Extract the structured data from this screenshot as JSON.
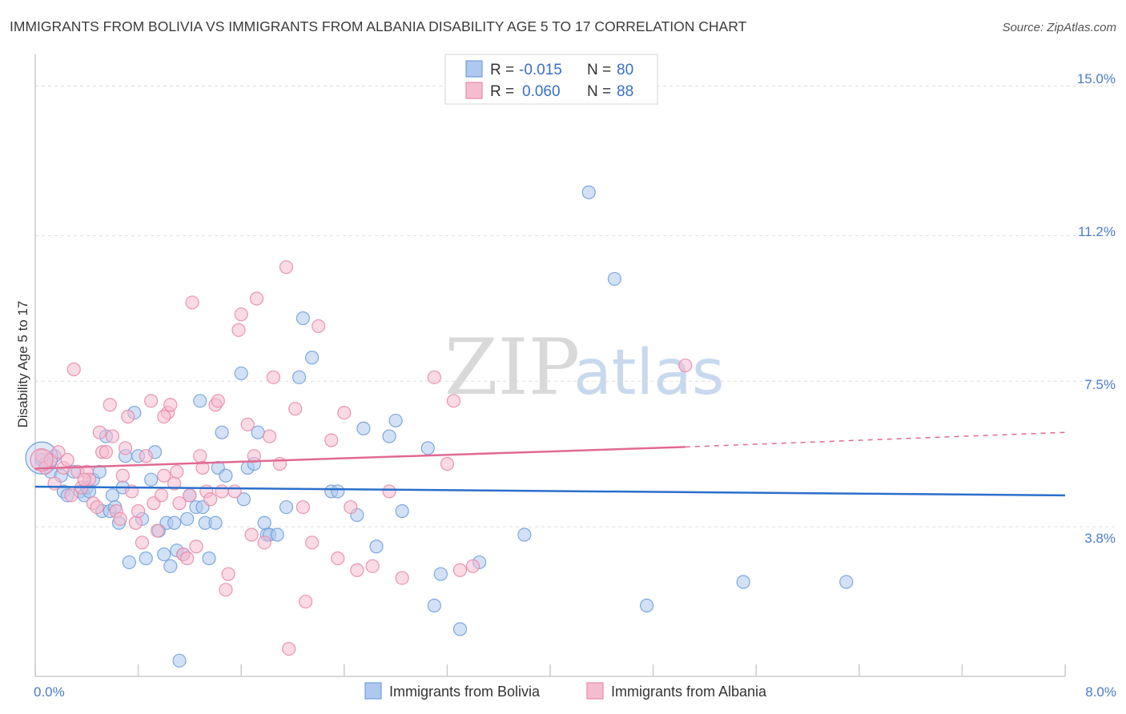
{
  "header": {
    "title": "IMMIGRANTS FROM BOLIVIA VS IMMIGRANTS FROM ALBANIA DISABILITY AGE 5 TO 17 CORRELATION CHART",
    "source": "Source: ZipAtlas.com"
  },
  "watermark": {
    "zip": "ZIP",
    "atlas": "atlas"
  },
  "legend": {
    "r_label": "R =",
    "n_label": "N =",
    "rows": [
      {
        "name": "Immigrants from Bolivia",
        "r": "-0.015",
        "n": "80",
        "color": "#6fa0dc"
      },
      {
        "name": "Immigrants from Albania",
        "r": "0.060",
        "n": "88",
        "color": "#e88aa8"
      }
    ]
  },
  "colors": {
    "bolivia_fill": "#aec8ef",
    "bolivia_stroke": "#6fa0dc",
    "bolivia_line": "#2a6fcb",
    "albania_fill": "#f5bcd0",
    "albania_stroke": "#e88aa8",
    "albania_line": "#e06a92",
    "grid": "#dddddd",
    "tick_label": "#4a7cc7"
  },
  "chart_data": {
    "type": "scatter",
    "title": "IMMIGRANTS FROM BOLIVIA VS IMMIGRANTS FROM ALBANIA DISABILITY AGE 5 TO 17 CORRELATION CHART",
    "xlabel": "",
    "ylabel": "Disability Age 5 to 17",
    "xlim": [
      0,
      8
    ],
    "ylim": [
      0,
      15.6
    ],
    "x_tick_labels": [
      "0.0%",
      "8.0%"
    ],
    "y_ticks": [
      3.8,
      7.5,
      11.2,
      15.0
    ],
    "y_tick_labels": [
      "3.8%",
      "7.5%",
      "11.2%",
      "15.0%"
    ],
    "grid": true,
    "legend_position": "top-center",
    "series": [
      {
        "name": "Immigrants from Bolivia",
        "r": -0.015,
        "n": 80,
        "trend": {
          "x": [
            0,
            8
          ],
          "y": [
            4.82,
            4.6
          ]
        },
        "points": [
          [
            0.05,
            5.5
          ],
          [
            0.08,
            5.4
          ],
          [
            0.12,
            5.2
          ],
          [
            0.15,
            5.6
          ],
          [
            0.2,
            5.1
          ],
          [
            0.22,
            4.7
          ],
          [
            0.25,
            4.6
          ],
          [
            0.3,
            5.2
          ],
          [
            0.35,
            4.7
          ],
          [
            0.38,
            4.6
          ],
          [
            0.4,
            4.8
          ],
          [
            0.42,
            4.7
          ],
          [
            0.45,
            5.0
          ],
          [
            0.5,
            5.2
          ],
          [
            0.52,
            4.2
          ],
          [
            0.55,
            6.1
          ],
          [
            0.58,
            4.2
          ],
          [
            0.6,
            4.6
          ],
          [
            0.62,
            4.3
          ],
          [
            0.65,
            3.9
          ],
          [
            0.68,
            4.8
          ],
          [
            0.7,
            5.6
          ],
          [
            0.73,
            2.9
          ],
          [
            0.77,
            6.7
          ],
          [
            0.8,
            5.6
          ],
          [
            0.83,
            4.0
          ],
          [
            0.86,
            3.0
          ],
          [
            0.9,
            5.0
          ],
          [
            0.93,
            5.7
          ],
          [
            0.96,
            3.7
          ],
          [
            1.0,
            3.1
          ],
          [
            1.02,
            3.9
          ],
          [
            1.05,
            2.8
          ],
          [
            1.08,
            3.9
          ],
          [
            1.1,
            3.2
          ],
          [
            1.12,
            0.4
          ],
          [
            1.15,
            3.1
          ],
          [
            1.18,
            4.0
          ],
          [
            1.2,
            4.6
          ],
          [
            1.25,
            4.3
          ],
          [
            1.28,
            7.0
          ],
          [
            1.3,
            4.3
          ],
          [
            1.32,
            3.9
          ],
          [
            1.35,
            3.0
          ],
          [
            1.4,
            3.9
          ],
          [
            1.42,
            5.3
          ],
          [
            1.45,
            6.2
          ],
          [
            1.48,
            5.1
          ],
          [
            1.6,
            7.7
          ],
          [
            1.62,
            4.5
          ],
          [
            1.65,
            5.3
          ],
          [
            1.7,
            5.4
          ],
          [
            1.73,
            6.2
          ],
          [
            1.78,
            3.9
          ],
          [
            1.8,
            3.6
          ],
          [
            1.82,
            3.6
          ],
          [
            1.88,
            3.6
          ],
          [
            1.95,
            4.3
          ],
          [
            2.05,
            7.6
          ],
          [
            2.08,
            9.1
          ],
          [
            2.15,
            8.1
          ],
          [
            2.3,
            4.7
          ],
          [
            2.35,
            4.7
          ],
          [
            2.5,
            4.1
          ],
          [
            2.55,
            6.3
          ],
          [
            2.65,
            3.3
          ],
          [
            2.75,
            6.1
          ],
          [
            2.8,
            6.5
          ],
          [
            2.85,
            4.2
          ],
          [
            3.05,
            5.8
          ],
          [
            3.1,
            1.8
          ],
          [
            3.15,
            2.6
          ],
          [
            3.3,
            1.2
          ],
          [
            3.45,
            2.9
          ],
          [
            3.8,
            3.6
          ],
          [
            4.3,
            12.3
          ],
          [
            4.5,
            10.1
          ],
          [
            4.75,
            1.8
          ],
          [
            5.5,
            2.4
          ],
          [
            6.3,
            2.4
          ]
        ]
      },
      {
        "name": "Immigrants from Albania",
        "r": 0.06,
        "n": 88,
        "trend": {
          "x": [
            0,
            5.05
          ],
          "y": [
            5.28,
            5.83
          ]
        },
        "trend_dashed": {
          "x": [
            5.05,
            8
          ],
          "y": [
            5.83,
            6.2
          ]
        },
        "points": [
          [
            0.05,
            5.6
          ],
          [
            0.08,
            5.3
          ],
          [
            0.12,
            5.5
          ],
          [
            0.15,
            4.9
          ],
          [
            0.18,
            5.7
          ],
          [
            0.22,
            5.3
          ],
          [
            0.25,
            5.5
          ],
          [
            0.28,
            4.6
          ],
          [
            0.3,
            7.8
          ],
          [
            0.33,
            5.2
          ],
          [
            0.36,
            4.8
          ],
          [
            0.4,
            5.2
          ],
          [
            0.42,
            5.0
          ],
          [
            0.45,
            4.4
          ],
          [
            0.48,
            4.3
          ],
          [
            0.5,
            6.2
          ],
          [
            0.52,
            5.7
          ],
          [
            0.55,
            5.7
          ],
          [
            0.58,
            6.9
          ],
          [
            0.6,
            6.1
          ],
          [
            0.63,
            4.2
          ],
          [
            0.66,
            4.0
          ],
          [
            0.68,
            5.1
          ],
          [
            0.7,
            5.8
          ],
          [
            0.72,
            6.6
          ],
          [
            0.75,
            4.7
          ],
          [
            0.78,
            3.9
          ],
          [
            0.8,
            4.2
          ],
          [
            0.83,
            3.4
          ],
          [
            0.86,
            5.6
          ],
          [
            0.9,
            7.0
          ],
          [
            0.92,
            4.4
          ],
          [
            0.95,
            3.7
          ],
          [
            0.98,
            4.6
          ],
          [
            1.0,
            5.1
          ],
          [
            1.03,
            6.7
          ],
          [
            1.05,
            6.9
          ],
          [
            1.08,
            4.9
          ],
          [
            1.1,
            5.2
          ],
          [
            1.12,
            4.4
          ],
          [
            1.15,
            3.1
          ],
          [
            1.18,
            3.0
          ],
          [
            1.2,
            4.6
          ],
          [
            1.22,
            9.5
          ],
          [
            1.25,
            3.3
          ],
          [
            1.28,
            5.6
          ],
          [
            1.3,
            5.3
          ],
          [
            1.33,
            4.7
          ],
          [
            1.36,
            4.5
          ],
          [
            1.4,
            6.9
          ],
          [
            1.42,
            7.0
          ],
          [
            1.45,
            4.7
          ],
          [
            1.48,
            2.2
          ],
          [
            1.5,
            2.6
          ],
          [
            1.55,
            4.7
          ],
          [
            1.58,
            8.8
          ],
          [
            1.6,
            9.2
          ],
          [
            1.65,
            6.4
          ],
          [
            1.68,
            3.6
          ],
          [
            1.7,
            5.6
          ],
          [
            1.72,
            9.6
          ],
          [
            1.78,
            3.4
          ],
          [
            1.82,
            6.1
          ],
          [
            1.85,
            7.6
          ],
          [
            1.9,
            5.4
          ],
          [
            1.95,
            10.4
          ],
          [
            2.02,
            6.8
          ],
          [
            2.08,
            4.3
          ],
          [
            2.1,
            1.9
          ],
          [
            2.15,
            3.4
          ],
          [
            2.2,
            8.9
          ],
          [
            2.3,
            6.0
          ],
          [
            2.35,
            3.0
          ],
          [
            2.4,
            6.7
          ],
          [
            2.45,
            4.3
          ],
          [
            2.5,
            2.7
          ],
          [
            2.62,
            2.8
          ],
          [
            2.75,
            4.7
          ],
          [
            2.85,
            2.5
          ],
          [
            3.1,
            7.6
          ],
          [
            3.2,
            5.4
          ],
          [
            3.25,
            7.0
          ],
          [
            3.3,
            2.7
          ],
          [
            3.4,
            2.8
          ],
          [
            5.05,
            7.9
          ],
          [
            1.97,
            0.7
          ],
          [
            1.0,
            6.6
          ],
          [
            0.38,
            5.0
          ]
        ]
      }
    ]
  }
}
